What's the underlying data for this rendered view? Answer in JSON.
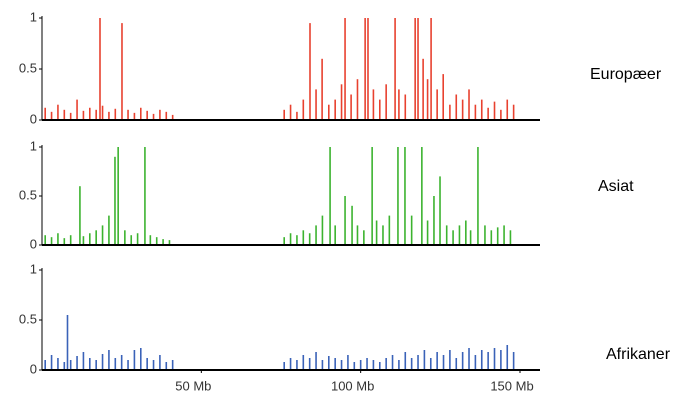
{
  "chart_data": [
    {
      "type": "spike",
      "xlim": [
        0,
        150
      ],
      "ylim": [
        0,
        1
      ],
      "yticks": [
        0,
        0.5,
        1
      ],
      "series": [
        {
          "name": "Europæer",
          "color": "#e8412f",
          "x": [
            1,
            3,
            5,
            7,
            9,
            11,
            13,
            15,
            17,
            18.2,
            19,
            21,
            23,
            25.1,
            27,
            29,
            31,
            33,
            35,
            37,
            39,
            41,
            76,
            78,
            80,
            82,
            84.1,
            86,
            87.9,
            90,
            92,
            94,
            95.1,
            97,
            99,
            101.4,
            102.3,
            104,
            106,
            108,
            110.8,
            112,
            114,
            117.1,
            118,
            119.6,
            121,
            122.1,
            124,
            125.9,
            128,
            130,
            132,
            134,
            136,
            138,
            140,
            142,
            144,
            146,
            148
          ],
          "values": [
            0.12,
            0.08,
            0.15,
            0.1,
            0.07,
            0.2,
            0.09,
            0.12,
            0.1,
            1,
            0.14,
            0.08,
            0.11,
            0.95,
            0.1,
            0.07,
            0.12,
            0.09,
            0.06,
            0.1,
            0.08,
            0.05,
            0.1,
            0.15,
            0.08,
            0.2,
            0.95,
            0.3,
            0.6,
            0.15,
            0.2,
            0.35,
            1,
            0.25,
            0.4,
            1,
            1,
            0.3,
            0.2,
            0.35,
            1,
            0.3,
            0.25,
            1,
            1,
            0.6,
            0.4,
            1,
            0.3,
            0.45,
            0.15,
            0.25,
            0.2,
            0.3,
            0.15,
            0.2,
            0.12,
            0.18,
            0.1,
            0.2,
            0.15
          ]
        }
      ]
    },
    {
      "type": "spike",
      "xlim": [
        0,
        150
      ],
      "ylim": [
        0,
        1
      ],
      "yticks": [
        0,
        0.5,
        1
      ],
      "series": [
        {
          "name": "Asiat",
          "color": "#3cb32f",
          "x": [
            1,
            3,
            5,
            7,
            9,
            11.9,
            13,
            15,
            17,
            19,
            21,
            22.9,
            23.9,
            26,
            28,
            30,
            32.3,
            34,
            36,
            38,
            40,
            76,
            78,
            80,
            82,
            84,
            86,
            88,
            90.4,
            92,
            95.1,
            97.3,
            99,
            101,
            103.6,
            105,
            107,
            109,
            111.7,
            113.9,
            116,
            119.2,
            121,
            123,
            124.9,
            127,
            129,
            131,
            133,
            134.5,
            136.8,
            139,
            141,
            143,
            145,
            147
          ],
          "values": [
            0.1,
            0.08,
            0.12,
            0.07,
            0.1,
            0.6,
            0.09,
            0.12,
            0.15,
            0.2,
            0.3,
            0.9,
            1,
            0.15,
            0.1,
            0.12,
            1,
            0.1,
            0.08,
            0.06,
            0.05,
            0.08,
            0.12,
            0.1,
            0.15,
            0.12,
            0.2,
            0.3,
            1,
            0.2,
            0.5,
            0.4,
            0.2,
            0.15,
            1,
            0.25,
            0.2,
            0.3,
            1,
            1,
            0.3,
            1,
            0.25,
            0.5,
            0.7,
            0.2,
            0.15,
            0.2,
            0.25,
            0.15,
            1,
            0.2,
            0.15,
            0.18,
            0.2,
            0.15
          ]
        }
      ]
    },
    {
      "type": "spike",
      "xlim": [
        0,
        150
      ],
      "ylim": [
        0,
        1
      ],
      "yticks": [
        0,
        0.5,
        1
      ],
      "xticks": [
        {
          "value": 50,
          "label": "50 Mb"
        },
        {
          "value": 100,
          "label": "100 Mb"
        },
        {
          "value": 150,
          "label": "150 Mb"
        }
      ],
      "series": [
        {
          "name": "Afrikaner",
          "color": "#3a62b8",
          "x": [
            1,
            3,
            5,
            7,
            8,
            9,
            11,
            13,
            15,
            17,
            19,
            21,
            23,
            25,
            27,
            29,
            31,
            33,
            35,
            37,
            39,
            41,
            76,
            78,
            80,
            82,
            84,
            86,
            88,
            90,
            92,
            94,
            96,
            98,
            100,
            102,
            104,
            106,
            108,
            110,
            112,
            114,
            116,
            118,
            120,
            122,
            124,
            126,
            128,
            130,
            132,
            134,
            136,
            138,
            140,
            142,
            144,
            146,
            148
          ],
          "values": [
            0.1,
            0.15,
            0.12,
            0.08,
            0.55,
            0.1,
            0.14,
            0.18,
            0.12,
            0.1,
            0.16,
            0.2,
            0.12,
            0.15,
            0.1,
            0.2,
            0.22,
            0.12,
            0.1,
            0.15,
            0.08,
            0.1,
            0.08,
            0.12,
            0.1,
            0.15,
            0.12,
            0.18,
            0.1,
            0.14,
            0.12,
            0.1,
            0.15,
            0.08,
            0.1,
            0.12,
            0.1,
            0.08,
            0.12,
            0.15,
            0.1,
            0.18,
            0.12,
            0.15,
            0.2,
            0.12,
            0.18,
            0.15,
            0.2,
            0.12,
            0.18,
            0.22,
            0.15,
            0.2,
            0.18,
            0.22,
            0.2,
            0.25,
            0.18
          ]
        }
      ]
    }
  ]
}
